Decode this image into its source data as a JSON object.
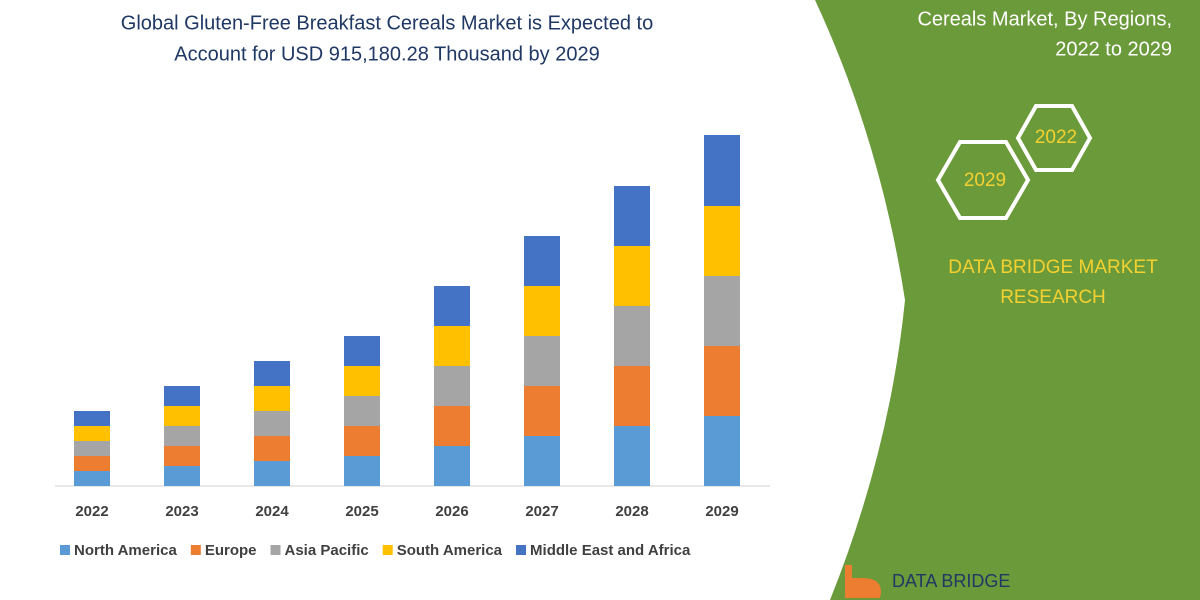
{
  "chart_data": {
    "type": "bar",
    "stacked": true,
    "title": [
      "Global Gluten-Free Breakfast Cereals Market is Expected to",
      "Account for USD 915,180.28 Thousand by 2029"
    ],
    "categories": [
      "2022",
      "2023",
      "2024",
      "2025",
      "2026",
      "2027",
      "2028",
      "2029"
    ],
    "series": [
      {
        "name": "North America",
        "color": "#5b9bd5",
        "values": [
          15,
          20,
          25,
          30,
          40,
          50,
          60,
          70
        ]
      },
      {
        "name": "Europe",
        "color": "#ed7d31",
        "values": [
          15,
          20,
          25,
          30,
          40,
          50,
          60,
          70
        ]
      },
      {
        "name": "Asia Pacific",
        "color": "#a5a5a5",
        "values": [
          15,
          20,
          25,
          30,
          40,
          50,
          60,
          70
        ]
      },
      {
        "name": "South America",
        "color": "#ffc000",
        "values": [
          15,
          20,
          25,
          30,
          40,
          50,
          60,
          70
        ]
      },
      {
        "name": "Middle East and Africa",
        "color": "#4472c4",
        "values": [
          15,
          20,
          25,
          30,
          40,
          50,
          60,
          71
        ]
      }
    ],
    "legend": "bottom"
  },
  "panel": {
    "heading": [
      "Cereals Market, By Regions,",
      "2022 to 2029"
    ],
    "hexagons": [
      "2022",
      "2029"
    ],
    "brand": [
      "DATA BRIDGE MARKET",
      "RESEARCH"
    ],
    "logo": "DATA BRIDGE"
  }
}
